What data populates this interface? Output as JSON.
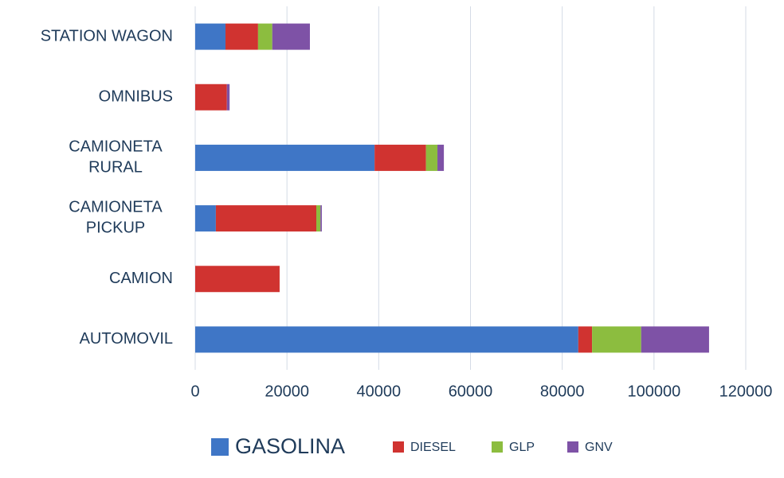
{
  "chart_data": {
    "type": "bar",
    "orientation": "horizontal",
    "stacked": true,
    "categories": [
      "AUTOMOVIL",
      "CAMION",
      "CAMIONETA PICKUP",
      "CAMIONETA RURAL",
      "OMNIBUS",
      "STATION WAGON"
    ],
    "series": [
      {
        "name": "GASOLINA",
        "color": "#3f76c6",
        "values": [
          83500,
          0,
          4500,
          39100,
          0,
          6600
        ]
      },
      {
        "name": "DIESEL",
        "color": "#d03330",
        "values": [
          3000,
          18400,
          21900,
          11200,
          6900,
          7100
        ]
      },
      {
        "name": "GLP",
        "color": "#8cbd3f",
        "values": [
          10700,
          0,
          900,
          2500,
          0,
          3100
        ]
      },
      {
        "name": "GNV",
        "color": "#7e52a6",
        "values": [
          14800,
          0,
          300,
          1400,
          600,
          8200
        ]
      }
    ],
    "xlim": [
      0,
      120000
    ],
    "xticks": [
      0,
      20000,
      40000,
      60000,
      80000,
      100000,
      120000
    ],
    "grid": true,
    "legend": "bottom"
  }
}
